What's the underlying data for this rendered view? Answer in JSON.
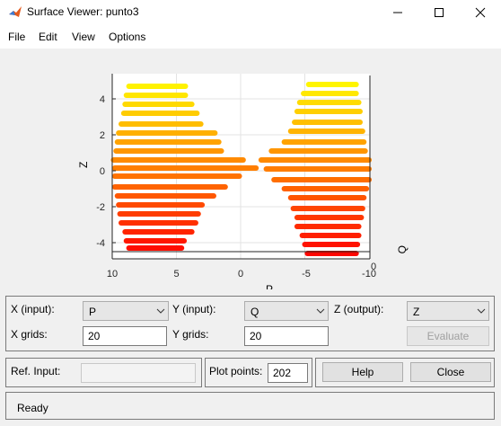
{
  "window": {
    "title": "Surface Viewer: punto3"
  },
  "menu": [
    "File",
    "Edit",
    "View",
    "Options"
  ],
  "controls": {
    "x_input_label": "X (input):",
    "x_input_value": "P",
    "y_input_label": "Y (input):",
    "y_input_value": "Q",
    "z_output_label": "Z (output):",
    "z_output_value": "Z",
    "x_grids_label": "X grids:",
    "x_grids_value": "20",
    "y_grids_label": "Y grids:",
    "y_grids_value": "20",
    "evaluate_label": "Evaluate",
    "ref_input_label": "Ref. Input:",
    "plot_points_label": "Plot points:",
    "plot_points_value": "202",
    "help_label": "Help",
    "close_label": "Close"
  },
  "status": {
    "text": "Ready"
  },
  "chart_data": {
    "type": "surface",
    "xlabel": "P",
    "ylabel": "Q",
    "zlabel": "Z",
    "p_ticks": [
      10,
      5,
      0
    ],
    "q_ticks": [
      -5,
      -10
    ],
    "q_tick_extra": [
      0
    ],
    "z_ticks": [
      4,
      2,
      0,
      -2,
      -4
    ],
    "zlim": [
      -4.8,
      5.2
    ],
    "p_range": [
      10,
      -10
    ],
    "q_range": [
      0,
      -10
    ],
    "colormap": "autumn",
    "left_lobe": [
      {
        "z": 4.7,
        "p0": 8.7,
        "p1": 4.3
      },
      {
        "z": 4.2,
        "p0": 8.9,
        "p1": 4.3
      },
      {
        "z": 3.7,
        "p0": 9.0,
        "p1": 3.8
      },
      {
        "z": 3.2,
        "p0": 9.1,
        "p1": 3.4
      },
      {
        "z": 2.6,
        "p0": 9.3,
        "p1": 3.1
      },
      {
        "z": 2.1,
        "p0": 9.5,
        "p1": 2.0
      },
      {
        "z": 1.6,
        "p0": 9.6,
        "p1": 1.7
      },
      {
        "z": 1.1,
        "p0": 9.7,
        "p1": 1.5
      },
      {
        "z": 0.6,
        "p0": 9.9,
        "p1": -0.2
      },
      {
        "z": 0.15,
        "p0": 9.8,
        "p1": -1.2
      },
      {
        "z": -0.3,
        "p0": 9.8,
        "p1": 0.1
      },
      {
        "z": -0.9,
        "p0": 9.8,
        "p1": 1.2
      },
      {
        "z": -1.4,
        "p0": 9.6,
        "p1": 2.1
      },
      {
        "z": -1.9,
        "p0": 9.5,
        "p1": 3.0
      },
      {
        "z": -2.4,
        "p0": 9.4,
        "p1": 3.3
      },
      {
        "z": -2.9,
        "p0": 9.3,
        "p1": 3.5
      },
      {
        "z": -3.4,
        "p0": 9.0,
        "p1": 3.8
      },
      {
        "z": -3.9,
        "p0": 8.9,
        "p1": 4.4
      },
      {
        "z": -4.3,
        "p0": 8.7,
        "p1": 4.6
      }
    ],
    "right_lobe": [
      {
        "z": 4.8,
        "p0": -5.3,
        "p1": -9.0
      },
      {
        "z": 4.3,
        "p0": -4.9,
        "p1": -9.0
      },
      {
        "z": 3.8,
        "p0": -4.6,
        "p1": -9.2
      },
      {
        "z": 3.3,
        "p0": -4.4,
        "p1": -9.3
      },
      {
        "z": 2.7,
        "p0": -4.2,
        "p1": -9.3
      },
      {
        "z": 2.2,
        "p0": -3.9,
        "p1": -9.5
      },
      {
        "z": 1.6,
        "p0": -3.4,
        "p1": -9.6
      },
      {
        "z": 1.1,
        "p0": -2.4,
        "p1": -9.7
      },
      {
        "z": 0.6,
        "p0": -1.6,
        "p1": -10.0
      },
      {
        "z": 0.1,
        "p0": -2.0,
        "p1": -10.0
      },
      {
        "z": -0.5,
        "p0": -2.6,
        "p1": -10.0
      },
      {
        "z": -1.0,
        "p0": -3.4,
        "p1": -9.8
      },
      {
        "z": -1.5,
        "p0": -3.9,
        "p1": -9.6
      },
      {
        "z": -2.1,
        "p0": -4.1,
        "p1": -9.5
      },
      {
        "z": -2.6,
        "p0": -4.4,
        "p1": -9.4
      },
      {
        "z": -3.1,
        "p0": -4.4,
        "p1": -9.2
      },
      {
        "z": -3.6,
        "p0": -4.8,
        "p1": -9.2
      },
      {
        "z": -4.1,
        "p0": -5.0,
        "p1": -9.1
      },
      {
        "z": -4.6,
        "p0": -5.2,
        "p1": -9.0
      }
    ]
  }
}
